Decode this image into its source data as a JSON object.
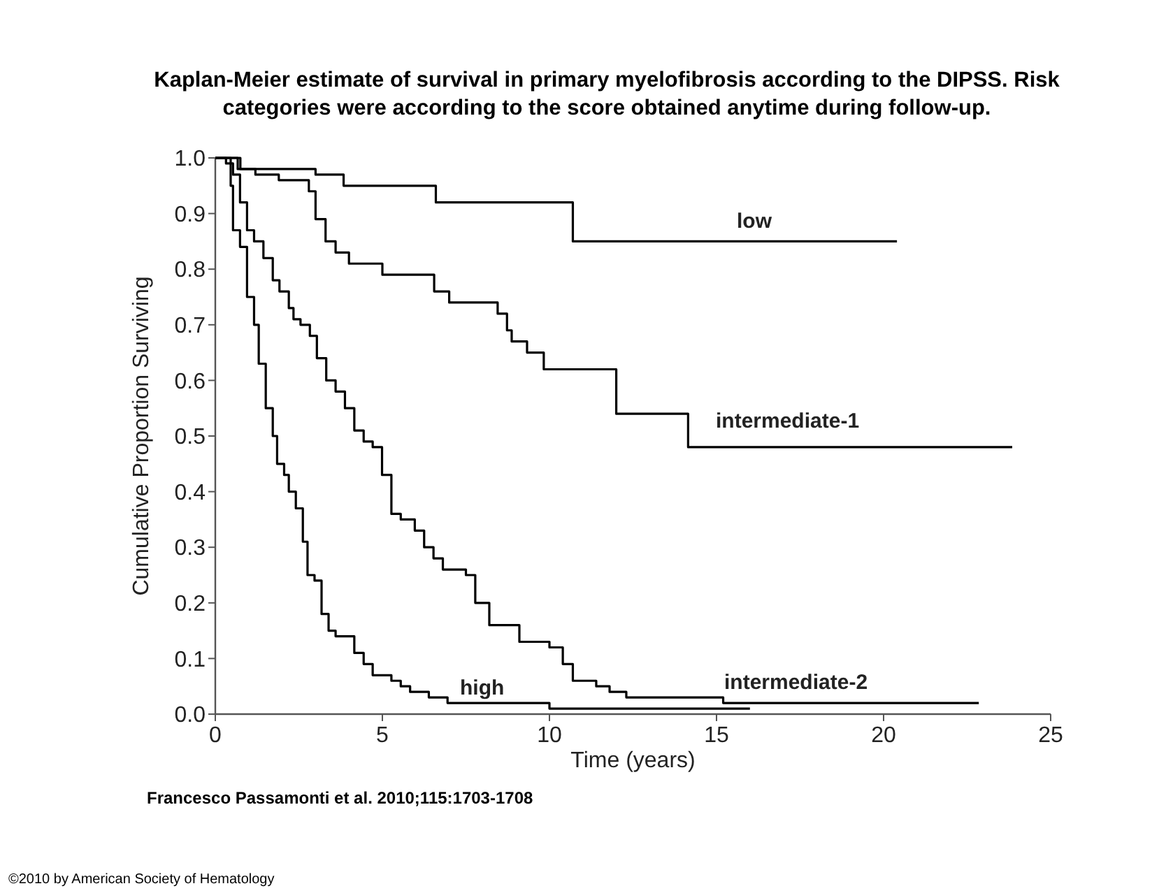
{
  "chart_data": {
    "type": "step",
    "title": "Kaplan-Meier estimate of survival in primary myelofibrosis according to the DIPSS. Risk categories were according to the score obtained anytime during follow-up.",
    "xlabel": "Time (years)",
    "ylabel": "Cumulative Proportion Surviving",
    "xlim": [
      0,
      25
    ],
    "xticks": [
      0,
      5,
      10,
      15,
      20,
      25
    ],
    "ylim": [
      0,
      1
    ],
    "yticks": [
      {
        "value": 0,
        "label": "0.0"
      },
      0.1,
      0.2,
      0.3,
      0.4,
      0.5,
      0.6,
      0.7,
      0.8,
      0.9,
      {
        "value": 1,
        "label": "1.0"
      }
    ],
    "grid": false,
    "legend": false,
    "marker": "none",
    "line_style": "solid",
    "series": [
      {
        "name": "low",
        "color": "#000000",
        "x": [
          0,
          0.75,
          3.0,
          3.84,
          6.6,
          10.7,
          20.4
        ],
        "values": [
          1,
          0.98,
          0.97,
          0.95,
          0.92,
          0.85,
          0.85
        ]
      },
      {
        "name": "intermediate-1",
        "color": "#000000",
        "x": [
          0,
          0.67,
          1.2,
          1.9,
          2.6,
          2.8,
          3.0,
          3.3,
          3.6,
          4.0,
          5.0,
          6.55,
          7.0,
          8.45,
          8.73,
          8.87,
          9.33,
          9.83,
          12.0,
          14.15,
          23.85
        ],
        "values": [
          1,
          0.98,
          0.97,
          0.96,
          0.96,
          0.94,
          0.89,
          0.85,
          0.83,
          0.81,
          0.79,
          0.76,
          0.74,
          0.72,
          0.69,
          0.67,
          0.65,
          0.62,
          0.54,
          0.48,
          0.48
        ]
      },
      {
        "name": "intermediate-2",
        "color": "#000000",
        "x": [
          0,
          0.32,
          0.53,
          0.74,
          0.95,
          1.16,
          1.44,
          1.72,
          1.92,
          2.2,
          2.34,
          2.55,
          2.83,
          3.04,
          3.32,
          3.6,
          3.88,
          4.16,
          4.44,
          4.71,
          4.99,
          5.27,
          5.55,
          5.97,
          6.25,
          6.53,
          6.81,
          7.5,
          7.78,
          8.13,
          8.2,
          9.1,
          10.0,
          10.4,
          10.7,
          10.9,
          11.4,
          11.8,
          12.3,
          15.2,
          17.3,
          22.85
        ],
        "values": [
          1,
          0.99,
          0.97,
          0.92,
          0.87,
          0.85,
          0.82,
          0.78,
          0.76,
          0.73,
          0.71,
          0.7,
          0.68,
          0.64,
          0.6,
          0.58,
          0.55,
          0.51,
          0.49,
          0.48,
          0.43,
          0.36,
          0.35,
          0.33,
          0.3,
          0.28,
          0.26,
          0.25,
          0.2,
          0.2,
          0.16,
          0.13,
          0.12,
          0.09,
          0.06,
          0.06,
          0.05,
          0.04,
          0.03,
          0.02,
          0.02,
          0.02
        ]
      },
      {
        "name": "high",
        "color": "#000000",
        "x": [
          0,
          0.46,
          0.53,
          0.74,
          0.95,
          1.16,
          1.3,
          1.51,
          1.72,
          1.85,
          2.06,
          2.2,
          2.41,
          2.62,
          2.76,
          2.97,
          3.18,
          3.39,
          3.6,
          4.16,
          4.44,
          4.71,
          5.27,
          5.55,
          5.83,
          6.39,
          6.95,
          10.0,
          16.0
        ],
        "values": [
          1,
          0.95,
          0.87,
          0.84,
          0.75,
          0.7,
          0.63,
          0.55,
          0.5,
          0.45,
          0.43,
          0.4,
          0.37,
          0.31,
          0.25,
          0.24,
          0.18,
          0.15,
          0.14,
          0.11,
          0.09,
          0.07,
          0.06,
          0.05,
          0.04,
          0.03,
          0.02,
          0.01,
          0.01
        ]
      }
    ],
    "annotations": [
      "Francesco Passamonti et al. 2010;115:1703-1708",
      "©2010 by American Society of Hematology"
    ]
  }
}
